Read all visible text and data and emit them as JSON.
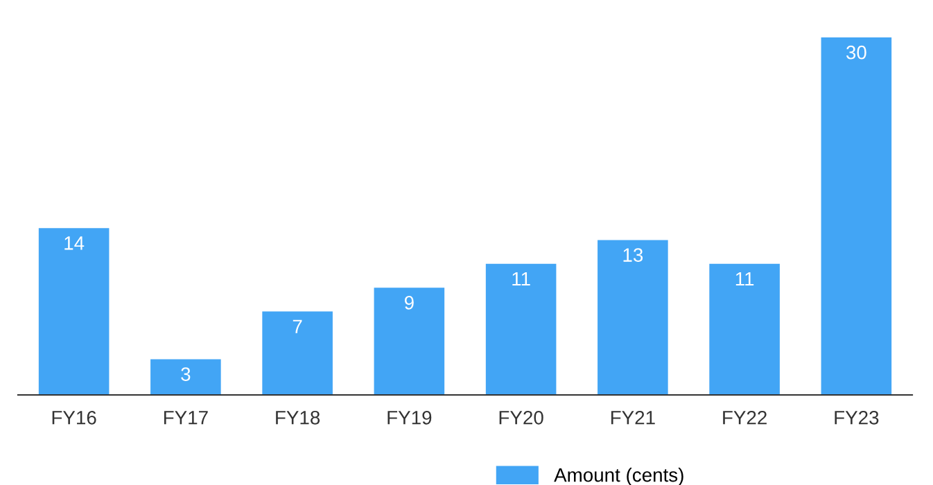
{
  "chart_data": {
    "type": "bar",
    "categories": [
      "FY16",
      "FY17",
      "FY18",
      "FY19",
      "FY20",
      "FY21",
      "FY22",
      "FY23"
    ],
    "series": [
      {
        "name": "Amount (cents)",
        "color": "#42a5f5",
        "values": [
          14,
          3,
          7,
          9,
          11,
          13,
          11,
          30
        ]
      }
    ],
    "data_labels": true,
    "legend": "bottom",
    "grid": false
  }
}
